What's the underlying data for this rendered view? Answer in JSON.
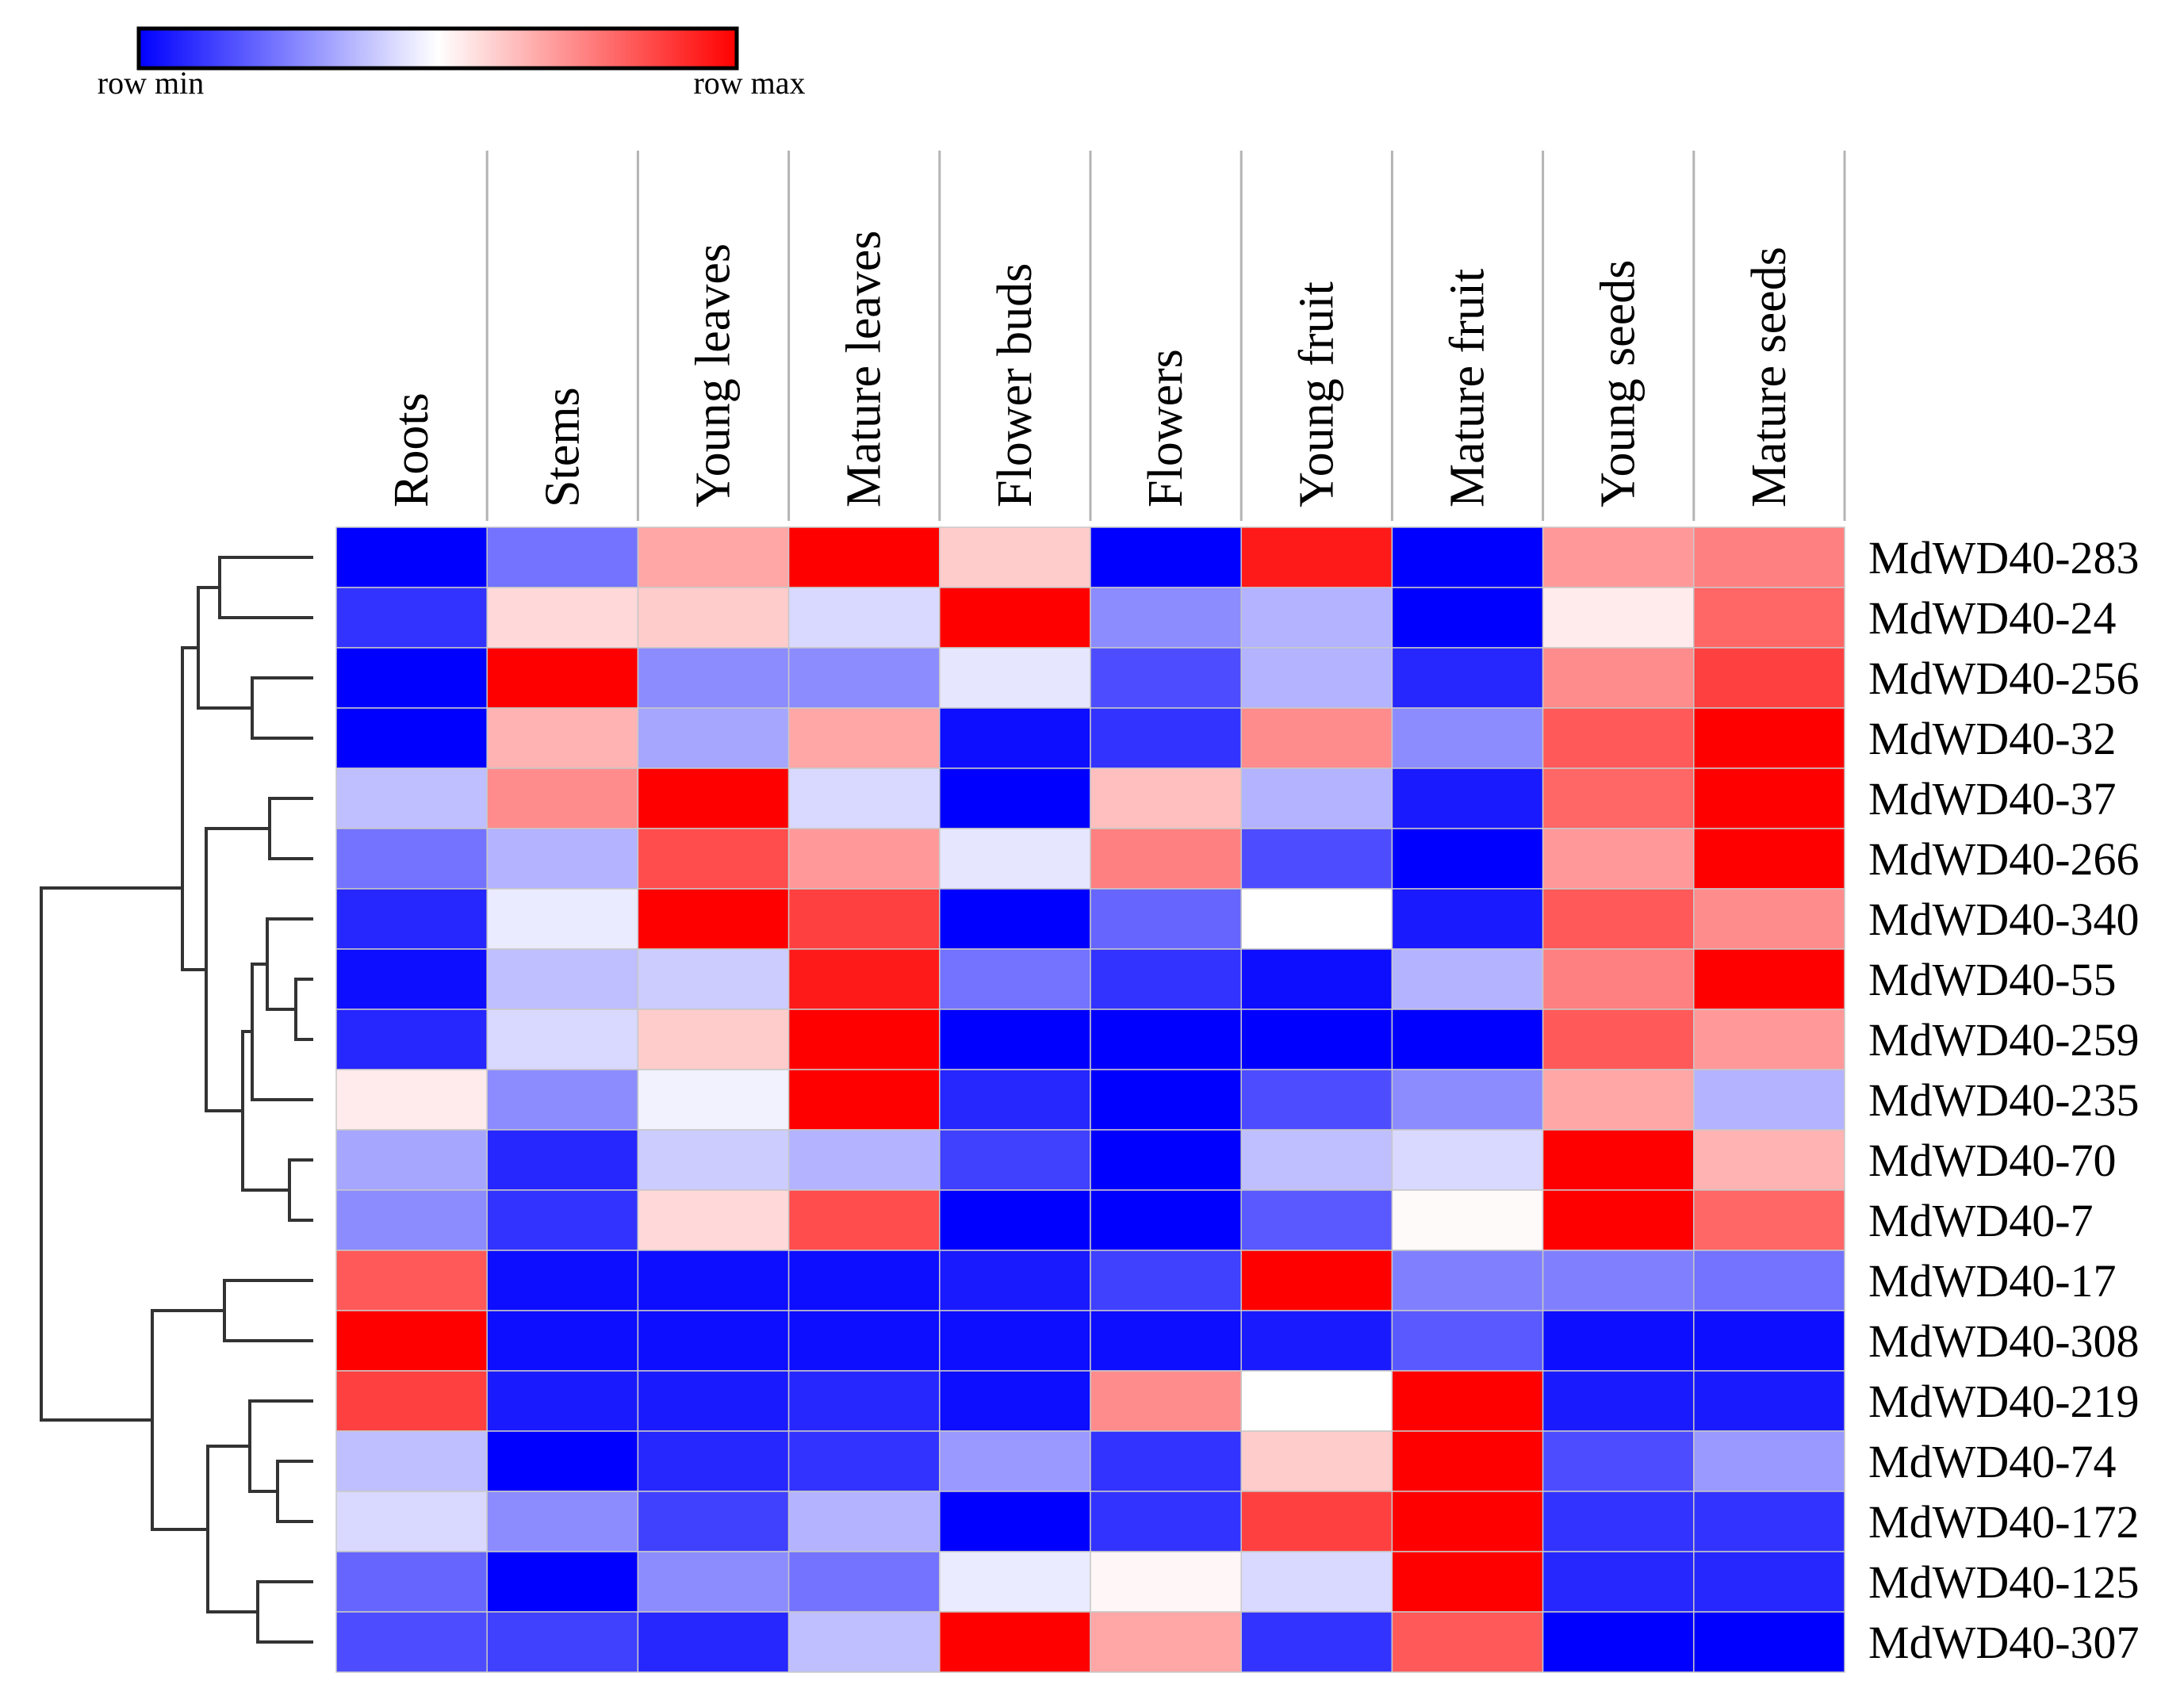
{
  "chart_data": {
    "type": "heatmap",
    "title": "",
    "xlabel": "",
    "ylabel": "",
    "scale": "row",
    "legend": {
      "min_label": "row min",
      "max_label": "row max",
      "placement": "top-left",
      "colors": [
        "#0000ff",
        "#ffffff",
        "#ff0000"
      ]
    },
    "columns": [
      "Roots",
      "Stems",
      "Young leaves",
      "Mature leaves",
      "Flower buds",
      "Flowers",
      "Young fruit",
      "Mature fruit",
      "Young seeds",
      "Mature seeds"
    ],
    "rows": [
      "MdWD40-283",
      "MdWD40-24",
      "MdWD40-256",
      "MdWD40-32",
      "MdWD40-37",
      "MdWD40-266",
      "MdWD40-340",
      "MdWD40-55",
      "MdWD40-259",
      "MdWD40-235",
      "MdWD40-70",
      "MdWD40-7",
      "MdWD40-17",
      "MdWD40-308",
      "MdWD40-219",
      "MdWD40-74",
      "MdWD40-172",
      "MdWD40-125",
      "MdWD40-307"
    ],
    "values": [
      [
        -1.0,
        -0.55,
        0.35,
        1.0,
        0.2,
        -1.0,
        0.9,
        -1.0,
        0.4,
        0.5
      ],
      [
        -0.8,
        0.15,
        0.2,
        -0.15,
        1.0,
        -0.45,
        -0.3,
        -1.0,
        0.08,
        0.6
      ],
      [
        -1.0,
        1.0,
        -0.45,
        -0.45,
        -0.1,
        -0.7,
        -0.3,
        -0.85,
        0.45,
        0.75
      ],
      [
        -1.0,
        0.3,
        -0.35,
        0.35,
        -0.95,
        -0.8,
        0.45,
        -0.45,
        0.65,
        1.0
      ],
      [
        -0.25,
        0.45,
        1.0,
        -0.15,
        -1.0,
        0.25,
        -0.3,
        -0.9,
        0.6,
        1.0
      ],
      [
        -0.55,
        -0.3,
        0.7,
        0.4,
        -0.1,
        0.5,
        -0.7,
        -1.0,
        0.4,
        1.0
      ],
      [
        -0.85,
        -0.08,
        1.0,
        0.75,
        -1.0,
        -0.6,
        0.0,
        -0.9,
        0.65,
        0.45
      ],
      [
        -0.95,
        -0.25,
        -0.2,
        0.9,
        -0.55,
        -0.8,
        -0.95,
        -0.3,
        0.5,
        1.0
      ],
      [
        -0.85,
        -0.15,
        0.2,
        1.0,
        -1.0,
        -1.0,
        -1.0,
        -1.0,
        0.65,
        0.4
      ],
      [
        0.08,
        -0.45,
        -0.05,
        1.0,
        -0.85,
        -1.0,
        -0.7,
        -0.45,
        0.35,
        -0.3
      ],
      [
        -0.35,
        -0.85,
        -0.2,
        -0.3,
        -0.75,
        -1.0,
        -0.25,
        -0.15,
        1.0,
        0.3
      ],
      [
        -0.45,
        -0.8,
        0.15,
        0.7,
        -1.0,
        -1.0,
        -0.65,
        0.02,
        1.0,
        0.6
      ],
      [
        0.65,
        -0.95,
        -0.95,
        -0.95,
        -0.9,
        -0.75,
        1.0,
        -0.5,
        -0.5,
        -0.55
      ],
      [
        1.0,
        -0.95,
        -0.95,
        -0.95,
        -0.95,
        -0.95,
        -0.9,
        -0.65,
        -0.95,
        -0.95
      ],
      [
        0.75,
        -0.9,
        -0.9,
        -0.85,
        -0.95,
        0.45,
        0.0,
        1.0,
        -0.9,
        -0.9
      ],
      [
        -0.25,
        -1.0,
        -0.85,
        -0.8,
        -0.4,
        -0.8,
        0.2,
        1.0,
        -0.7,
        -0.4
      ],
      [
        -0.15,
        -0.45,
        -0.75,
        -0.3,
        -1.0,
        -0.8,
        0.75,
        1.0,
        -0.8,
        -0.8
      ],
      [
        -0.6,
        -1.0,
        -0.45,
        -0.55,
        -0.08,
        0.03,
        -0.15,
        1.0,
        -0.85,
        -0.85
      ],
      [
        -0.7,
        -0.75,
        -0.85,
        -0.25,
        1.0,
        0.35,
        -0.8,
        0.65,
        -1.0,
        -1.0
      ]
    ]
  }
}
